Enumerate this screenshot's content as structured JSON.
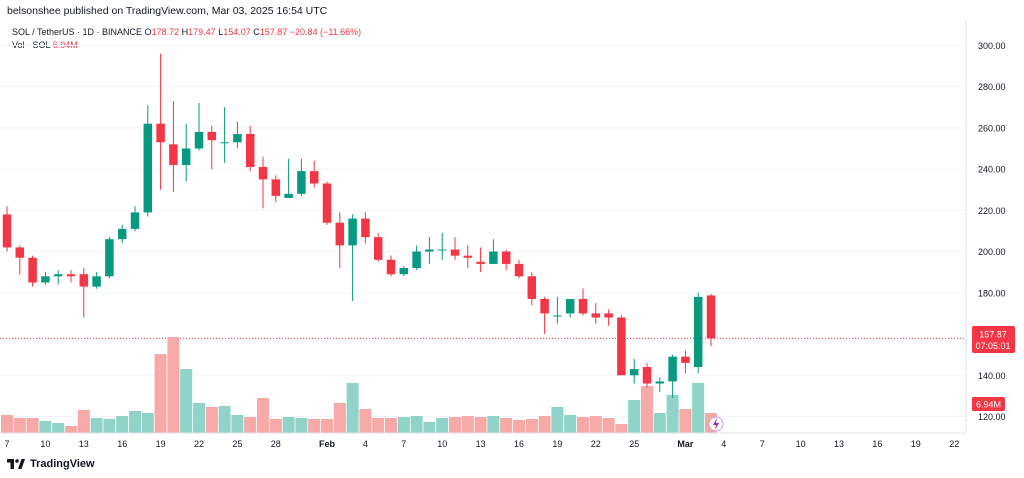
{
  "header": {
    "publisher": "belsonshee published on TradingView.com, Mar 03, 2025 16:54 UTC"
  },
  "legend": {
    "symbol": "SOL / TetherUS · 1D · BINANCE",
    "o_label": "O",
    "o": "178.72",
    "h_label": "H",
    "h": "179.47",
    "l_label": "L",
    "l": "154.07",
    "c_label": "C",
    "c": "157.87",
    "change": "−20.84 (−11.66%)",
    "vol_label": "Vol · SOL",
    "vol": "6.94M"
  },
  "price_badge": {
    "price": "157.87",
    "countdown": "07:05:01"
  },
  "vol_badge": "6.94M",
  "footer": {
    "brand": "TradingView"
  },
  "colors": {
    "up": "#089981",
    "down": "#f23645",
    "vol_up": "#8fd3c9",
    "vol_down": "#f7a9a7"
  },
  "chart_data": {
    "type": "candlestick",
    "symbol": "SOL / TetherUS",
    "interval": "1D",
    "exchange": "BINANCE",
    "ylim": [
      112,
      306
    ],
    "y_ticks": [
      "300.00",
      "280.00",
      "260.00",
      "240.00",
      "220.00",
      "200.00",
      "180.00",
      "140.00",
      "120.00"
    ],
    "x_ticks": [
      {
        "i": 0,
        "label": "7"
      },
      {
        "i": 3,
        "label": "10"
      },
      {
        "i": 6,
        "label": "13"
      },
      {
        "i": 9,
        "label": "16"
      },
      {
        "i": 12,
        "label": "19"
      },
      {
        "i": 15,
        "label": "22"
      },
      {
        "i": 18,
        "label": "25"
      },
      {
        "i": 21,
        "label": "28"
      },
      {
        "i": 25,
        "label": "Feb"
      },
      {
        "i": 28,
        "label": "4"
      },
      {
        "i": 31,
        "label": "7"
      },
      {
        "i": 34,
        "label": "10"
      },
      {
        "i": 37,
        "label": "13"
      },
      {
        "i": 40,
        "label": "16"
      },
      {
        "i": 43,
        "label": "19"
      },
      {
        "i": 46,
        "label": "22"
      },
      {
        "i": 49,
        "label": "25"
      },
      {
        "i": 53,
        "label": "Mar"
      },
      {
        "i": 56,
        "label": "4"
      },
      {
        "i": 59,
        "label": "7"
      },
      {
        "i": 62,
        "label": "10"
      },
      {
        "i": 65,
        "label": "13"
      },
      {
        "i": 68,
        "label": "16"
      },
      {
        "i": 71,
        "label": "19"
      },
      {
        "i": 74,
        "label": "22"
      }
    ],
    "candles": [
      {
        "o": 218,
        "h": 222,
        "l": 200,
        "c": 202
      },
      {
        "o": 202,
        "h": 203,
        "l": 189,
        "c": 197
      },
      {
        "o": 197,
        "h": 198,
        "l": 183,
        "c": 185
      },
      {
        "o": 185,
        "h": 190,
        "l": 184,
        "c": 188
      },
      {
        "o": 188,
        "h": 191,
        "l": 184,
        "c": 189
      },
      {
        "o": 189,
        "h": 191,
        "l": 185,
        "c": 188
      },
      {
        "o": 189,
        "h": 192,
        "l": 168,
        "c": 183
      },
      {
        "o": 183,
        "h": 190,
        "l": 182,
        "c": 188
      },
      {
        "o": 188,
        "h": 207,
        "l": 187,
        "c": 206
      },
      {
        "o": 206,
        "h": 213,
        "l": 204,
        "c": 211
      },
      {
        "o": 211,
        "h": 222,
        "l": 210,
        "c": 219
      },
      {
        "o": 219,
        "h": 271,
        "l": 217,
        "c": 262
      },
      {
        "o": 262,
        "h": 296,
        "l": 230,
        "c": 253
      },
      {
        "o": 252,
        "h": 273,
        "l": 229,
        "c": 242
      },
      {
        "o": 242,
        "h": 262,
        "l": 234,
        "c": 250
      },
      {
        "o": 250,
        "h": 272,
        "l": 249,
        "c": 258
      },
      {
        "o": 258,
        "h": 261,
        "l": 240,
        "c": 254
      },
      {
        "o": 253,
        "h": 270,
        "l": 243,
        "c": 253
      },
      {
        "o": 253,
        "h": 263,
        "l": 250,
        "c": 257
      },
      {
        "o": 257,
        "h": 261,
        "l": 239,
        "c": 241
      },
      {
        "o": 241,
        "h": 246,
        "l": 221,
        "c": 235
      },
      {
        "o": 235,
        "h": 237,
        "l": 224,
        "c": 227
      },
      {
        "o": 226,
        "h": 245,
        "l": 226,
        "c": 228
      },
      {
        "o": 228,
        "h": 245,
        "l": 227,
        "c": 239
      },
      {
        "o": 239,
        "h": 244,
        "l": 231,
        "c": 233
      },
      {
        "o": 233,
        "h": 234,
        "l": 213,
        "c": 214
      },
      {
        "o": 214,
        "h": 219,
        "l": 192,
        "c": 203
      },
      {
        "o": 203,
        "h": 218,
        "l": 176,
        "c": 216
      },
      {
        "o": 216,
        "h": 219,
        "l": 204,
        "c": 207
      },
      {
        "o": 207,
        "h": 209,
        "l": 195,
        "c": 196
      },
      {
        "o": 196,
        "h": 198,
        "l": 188,
        "c": 189
      },
      {
        "o": 189,
        "h": 193,
        "l": 188,
        "c": 192
      },
      {
        "o": 192,
        "h": 203,
        "l": 191,
        "c": 200
      },
      {
        "o": 200,
        "h": 207,
        "l": 194,
        "c": 201
      },
      {
        "o": 201,
        "h": 209,
        "l": 196,
        "c": 201
      },
      {
        "o": 201,
        "h": 207,
        "l": 196,
        "c": 198
      },
      {
        "o": 198,
        "h": 203,
        "l": 192,
        "c": 197
      },
      {
        "o": 195,
        "h": 202,
        "l": 190,
        "c": 194
      },
      {
        "o": 194,
        "h": 206,
        "l": 194,
        "c": 200
      },
      {
        "o": 200,
        "h": 201,
        "l": 191,
        "c": 194
      },
      {
        "o": 194,
        "h": 196,
        "l": 187,
        "c": 188
      },
      {
        "o": 188,
        "h": 190,
        "l": 174,
        "c": 177
      },
      {
        "o": 177,
        "h": 178,
        "l": 160,
        "c": 170
      },
      {
        "o": 169,
        "h": 178,
        "l": 165,
        "c": 169
      },
      {
        "o": 170,
        "h": 177,
        "l": 168,
        "c": 177
      },
      {
        "o": 177,
        "h": 182,
        "l": 169,
        "c": 170
      },
      {
        "o": 170,
        "h": 175,
        "l": 165,
        "c": 168
      },
      {
        "o": 170,
        "h": 172,
        "l": 164,
        "c": 168
      },
      {
        "o": 168,
        "h": 169,
        "l": 140,
        "c": 140
      },
      {
        "o": 140,
        "h": 148,
        "l": 136,
        "c": 143
      },
      {
        "o": 144,
        "h": 146,
        "l": 134,
        "c": 136
      },
      {
        "o": 136,
        "h": 139,
        "l": 132,
        "c": 137
      },
      {
        "o": 137,
        "h": 150,
        "l": 129,
        "c": 149
      },
      {
        "o": 149,
        "h": 152,
        "l": 141,
        "c": 146
      },
      {
        "o": 144,
        "h": 180,
        "l": 141,
        "c": 178
      },
      {
        "o": 178.72,
        "h": 179.47,
        "l": 154.07,
        "c": 157.87
      }
    ],
    "volume_ylim": [
      0,
      120
    ],
    "volumes": [
      18,
      15,
      15,
      12,
      10,
      7,
      23,
      15,
      14,
      17,
      22,
      20,
      79,
      96,
      64,
      30,
      26,
      27,
      18,
      16,
      35,
      14,
      16,
      15,
      14,
      14,
      30,
      50,
      24,
      15,
      15,
      16,
      17,
      11,
      15,
      16,
      17,
      16,
      17,
      15,
      13,
      14,
      17,
      26,
      18,
      16,
      17,
      15,
      9,
      33,
      47,
      20,
      38,
      24,
      50,
      20
    ]
  }
}
